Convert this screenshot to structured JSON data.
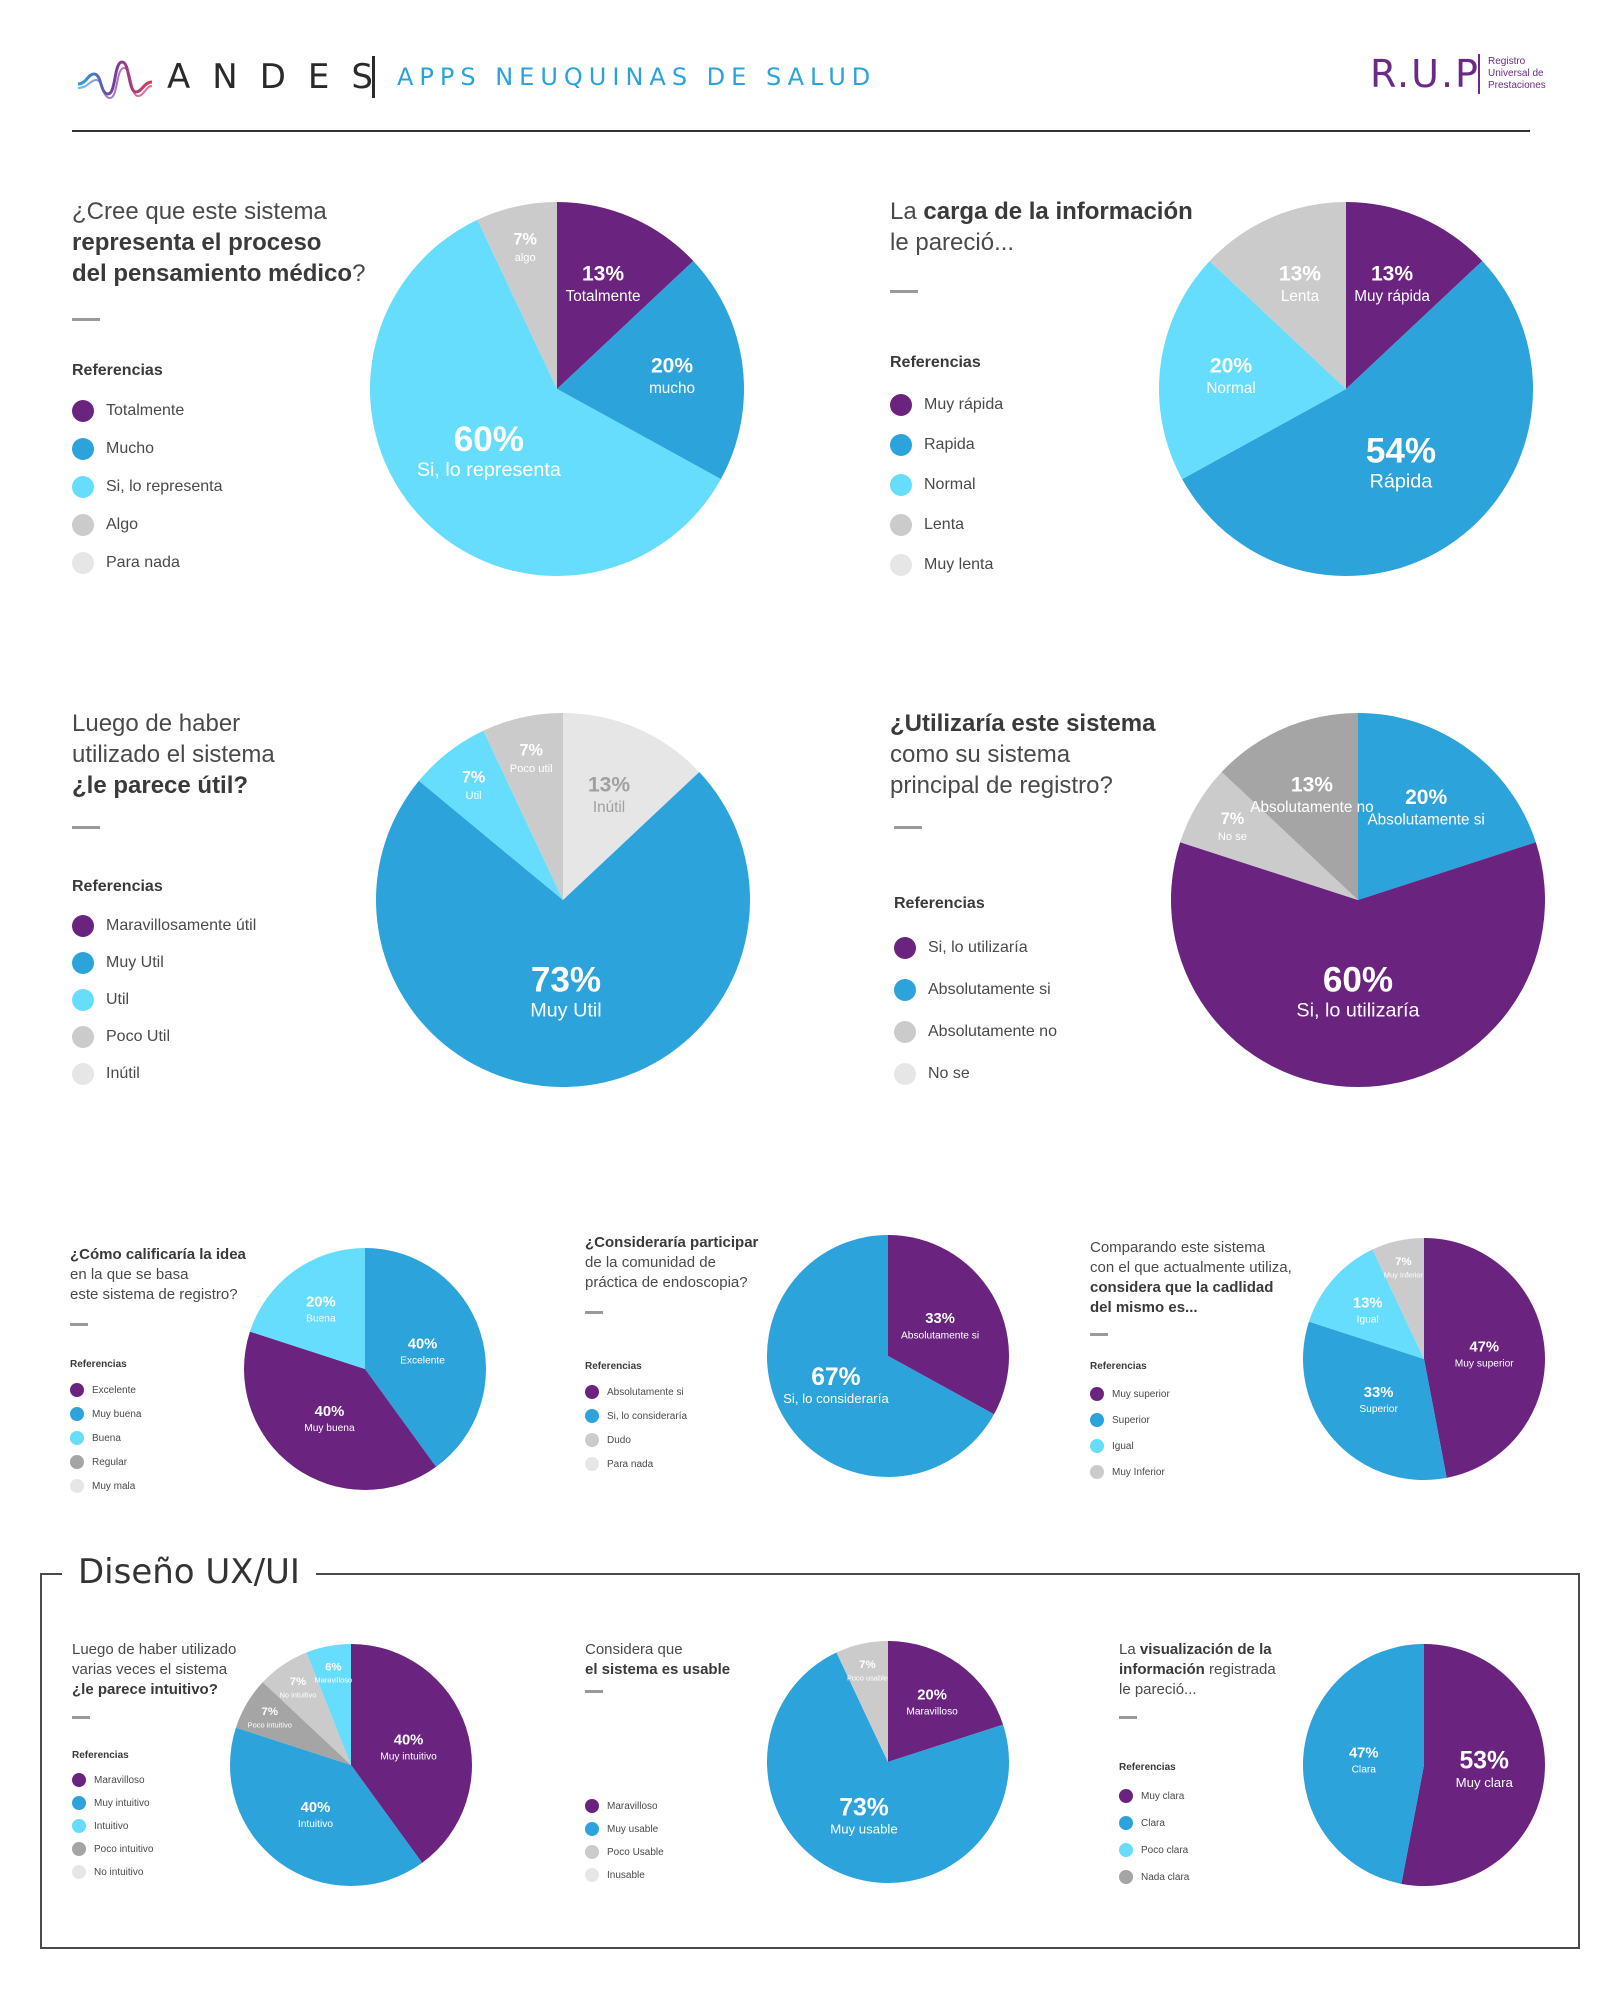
{
  "header": {
    "brand": "ANDES",
    "app_title": "APPS NEUQUINAS DE SALUD",
    "rup_logo": "R.U.P",
    "rup_lines": [
      "Registro",
      "Universal de",
      "Prestaciones"
    ]
  },
  "colors": {
    "purple": "#6a2480",
    "blue": "#2ca3db",
    "cyan": "#66ddfc",
    "gray": "#cbcbcb",
    "lightgray": "#e6e6e6",
    "darkgray": "#a5a5a5"
  },
  "section_ux": {
    "title": "Diseño UX/UI"
  },
  "chart_data": [
    {
      "type": "pie",
      "title_lines": [
        [
          {
            "t": "¿Cree que este sistema",
            "b": false
          }
        ],
        [
          {
            "t": "representa el proceso",
            "b": true
          }
        ],
        [
          {
            "t": "del pensamiento médico",
            "b": true
          },
          {
            "t": "?",
            "b": false
          }
        ]
      ],
      "legend_title": "Referencias",
      "legend": [
        {
          "label": "Totalmente",
          "color": "purple"
        },
        {
          "label": "Mucho",
          "color": "blue"
        },
        {
          "label": "Si, lo representa",
          "color": "cyan"
        },
        {
          "label": "Algo",
          "color": "gray"
        },
        {
          "label": "Para nada",
          "color": "lightgray"
        }
      ],
      "slices": [
        {
          "value": 13,
          "pct": "13%",
          "label": "Totalmente",
          "color": "purple"
        },
        {
          "value": 20,
          "pct": "20%",
          "label": "mucho",
          "color": "blue"
        },
        {
          "value": 60,
          "pct": "60%",
          "label": "Si, lo representa",
          "color": "cyan"
        },
        {
          "value": 7,
          "pct": "7%",
          "label": "algo",
          "color": "gray"
        }
      ]
    },
    {
      "type": "pie",
      "title_lines": [
        [
          {
            "t": "La ",
            "b": false
          },
          {
            "t": "carga de la información",
            "b": true
          }
        ],
        [
          {
            "t": "le pareció...",
            "b": false
          }
        ]
      ],
      "legend_title": "Referencias",
      "legend": [
        {
          "label": "Muy rápida",
          "color": "purple"
        },
        {
          "label": "Rapida",
          "color": "blue"
        },
        {
          "label": "Normal",
          "color": "cyan"
        },
        {
          "label": "Lenta",
          "color": "gray"
        },
        {
          "label": "Muy lenta",
          "color": "lightgray"
        }
      ],
      "slices": [
        {
          "value": 13,
          "pct": "13%",
          "label": "Muy rápida",
          "color": "purple"
        },
        {
          "value": 54,
          "pct": "54%",
          "label": "Rápida",
          "color": "blue"
        },
        {
          "value": 20,
          "pct": "20%",
          "label": "Normal",
          "color": "cyan"
        },
        {
          "value": 13,
          "pct": "13%",
          "label": "Lenta",
          "color": "gray"
        }
      ]
    },
    {
      "type": "pie",
      "title_lines": [
        [
          {
            "t": "Luego de haber",
            "b": false
          }
        ],
        [
          {
            "t": "utilizado el sistema",
            "b": false
          }
        ],
        [
          {
            "t": "¿le parece útil?",
            "b": true
          }
        ]
      ],
      "legend_title": "Referencias",
      "legend": [
        {
          "label": "Maravillosamente útil",
          "color": "purple"
        },
        {
          "label": "Muy Util",
          "color": "blue"
        },
        {
          "label": "Util",
          "color": "cyan"
        },
        {
          "label": "Poco Util",
          "color": "gray"
        },
        {
          "label": "Inútil",
          "color": "lightgray"
        }
      ],
      "slices": [
        {
          "value": 13,
          "pct": "13%",
          "label": "Inútil",
          "color": "lightgray"
        },
        {
          "value": 73,
          "pct": "73%",
          "label": "Muy Util",
          "color": "blue"
        },
        {
          "value": 7,
          "pct": "7%",
          "label": "Util",
          "color": "cyan"
        },
        {
          "value": 7,
          "pct": "7%",
          "label": "Poco util",
          "color": "gray"
        }
      ]
    },
    {
      "type": "pie",
      "title_lines": [
        [
          {
            "t": "¿Utilizaría este sistema",
            "b": true
          }
        ],
        [
          {
            "t": "como su sistema",
            "b": false
          }
        ],
        [
          {
            "t": "principal de registro?",
            "b": false
          }
        ]
      ],
      "legend_title": "Referencias",
      "legend": [
        {
          "label": "Si, lo utilizaría",
          "color": "purple"
        },
        {
          "label": "Absolutamente si",
          "color": "blue"
        },
        {
          "label": "Absolutamente no",
          "color": "gray"
        },
        {
          "label": "No se",
          "color": "lightgray"
        }
      ],
      "slices": [
        {
          "value": 20,
          "pct": "20%",
          "label": "Absolutamente si",
          "color": "blue"
        },
        {
          "value": 60,
          "pct": "60%",
          "label": "Si, lo utilizaría",
          "color": "purple"
        },
        {
          "value": 7,
          "pct": "7%",
          "label": "No se",
          "color": "gray"
        },
        {
          "value": 13,
          "pct": "13%",
          "label": "Absolutamente no",
          "color": "darkgray"
        }
      ]
    },
    {
      "type": "pie",
      "title_lines": [
        [
          {
            "t": "¿Cómo calificaría la idea",
            "b": true
          }
        ],
        [
          {
            "t": "en la que se basa",
            "b": false
          }
        ],
        [
          {
            "t": "este sistema de registro?",
            "b": false
          }
        ]
      ],
      "legend_title": "Referencias",
      "legend": [
        {
          "label": "Excelente",
          "color": "purple"
        },
        {
          "label": "Muy buena",
          "color": "blue"
        },
        {
          "label": "Buena",
          "color": "cyan"
        },
        {
          "label": "Regular",
          "color": "darkgray"
        },
        {
          "label": "Muy mala",
          "color": "lightgray"
        }
      ],
      "slices": [
        {
          "value": 40,
          "pct": "40%",
          "label": "Excelente",
          "color": "blue"
        },
        {
          "value": 40,
          "pct": "40%",
          "label": "Muy buena",
          "color": "purple"
        },
        {
          "value": 20,
          "pct": "20%",
          "label": "Buena",
          "color": "cyan"
        }
      ]
    },
    {
      "type": "pie",
      "title_lines": [
        [
          {
            "t": "¿Consideraría participar",
            "b": true
          }
        ],
        [
          {
            "t": "de la comunidad de",
            "b": false
          }
        ],
        [
          {
            "t": "práctica de endoscopia?",
            "b": false
          }
        ]
      ],
      "legend_title": "Referencias",
      "legend": [
        {
          "label": "Absolutamente si",
          "color": "purple"
        },
        {
          "label": "Si, lo consideraría",
          "color": "blue"
        },
        {
          "label": "Dudo",
          "color": "gray"
        },
        {
          "label": "Para nada",
          "color": "lightgray"
        }
      ],
      "slices": [
        {
          "value": 33,
          "pct": "33%",
          "label": "Absolutamente si",
          "color": "purple"
        },
        {
          "value": 67,
          "pct": "67%",
          "label": "Si, lo consideraría",
          "color": "blue"
        }
      ]
    },
    {
      "type": "pie",
      "title_lines": [
        [
          {
            "t": "Comparando este sistema",
            "b": false
          }
        ],
        [
          {
            "t": "con el que actualmente utiliza,",
            "b": false
          }
        ],
        [
          {
            "t": "considera que la cadlidad",
            "b": true
          }
        ],
        [
          {
            "t": "del mismo es...",
            "b": true
          }
        ]
      ],
      "legend_title": "Referencias",
      "legend": [
        {
          "label": "Muy superior",
          "color": "purple"
        },
        {
          "label": "Superior",
          "color": "blue"
        },
        {
          "label": "Igual",
          "color": "cyan"
        },
        {
          "label": "Muy Inferior",
          "color": "gray"
        }
      ],
      "slices": [
        {
          "value": 47,
          "pct": "47%",
          "label": "Muy superior",
          "color": "purple"
        },
        {
          "value": 33,
          "pct": "33%",
          "label": "Superior",
          "color": "blue"
        },
        {
          "value": 13,
          "pct": "13%",
          "label": "Igual",
          "color": "cyan"
        },
        {
          "value": 7,
          "pct": "7%",
          "label": "Muy Inferior",
          "color": "gray"
        }
      ]
    },
    {
      "type": "pie",
      "title_lines": [
        [
          {
            "t": "Luego de haber utilizado",
            "b": false
          }
        ],
        [
          {
            "t": "varias veces el sistema",
            "b": false
          }
        ],
        [
          {
            "t": "¿le parece intuitivo?",
            "b": true
          }
        ]
      ],
      "legend_title": "Referencias",
      "legend": [
        {
          "label": "Maravilloso",
          "color": "purple"
        },
        {
          "label": "Muy intuitivo",
          "color": "blue"
        },
        {
          "label": "Intuitivo",
          "color": "cyan"
        },
        {
          "label": "Poco intuitivo",
          "color": "darkgray"
        },
        {
          "label": "No intuitivo",
          "color": "lightgray"
        }
      ],
      "slices": [
        {
          "value": 40,
          "pct": "40%",
          "label": "Muy intuitivo",
          "color": "purple"
        },
        {
          "value": 40,
          "pct": "40%",
          "label": "Intuitivo",
          "color": "blue"
        },
        {
          "value": 7,
          "pct": "7%",
          "label": "Poco intuitivo",
          "color": "darkgray"
        },
        {
          "value": 7,
          "pct": "7%",
          "label": "No intuitivo",
          "color": "gray"
        },
        {
          "value": 6,
          "pct": "6%",
          "label": "Maravilloso",
          "color": "cyan"
        }
      ]
    },
    {
      "type": "pie",
      "title_lines": [
        [
          {
            "t": "Considera que",
            "b": false
          }
        ],
        [
          {
            "t": "el sistema es usable",
            "b": true
          }
        ]
      ],
      "legend_title": "",
      "legend": [
        {
          "label": "Maravilloso",
          "color": "purple"
        },
        {
          "label": "Muy usable",
          "color": "blue"
        },
        {
          "label": "Poco Usable",
          "color": "gray"
        },
        {
          "label": "Inusable",
          "color": "lightgray"
        }
      ],
      "slices": [
        {
          "value": 20,
          "pct": "20%",
          "label": "Maravilloso",
          "color": "purple"
        },
        {
          "value": 73,
          "pct": "73%",
          "label": "Muy usable",
          "color": "blue"
        },
        {
          "value": 7,
          "pct": "7%",
          "label": "Poco usable",
          "color": "gray"
        }
      ]
    },
    {
      "type": "pie",
      "title_lines": [
        [
          {
            "t": "La ",
            "b": false
          },
          {
            "t": "visualización de la",
            "b": true
          }
        ],
        [
          {
            "t": "información",
            "b": true
          },
          {
            "t": " registrada",
            "b": false
          }
        ],
        [
          {
            "t": "le pareció...",
            "b": false
          }
        ]
      ],
      "legend_title": "Referencias",
      "legend": [
        {
          "label": "Muy clara",
          "color": "purple"
        },
        {
          "label": "Clara",
          "color": "blue"
        },
        {
          "label": "Poco clara",
          "color": "cyan"
        },
        {
          "label": "Nada clara",
          "color": "darkgray"
        }
      ],
      "slices": [
        {
          "value": 53,
          "pct": "53%",
          "label": "Muy clara",
          "color": "purple"
        },
        {
          "value": 47,
          "pct": "47%",
          "label": "Clara",
          "color": "blue"
        }
      ]
    }
  ]
}
